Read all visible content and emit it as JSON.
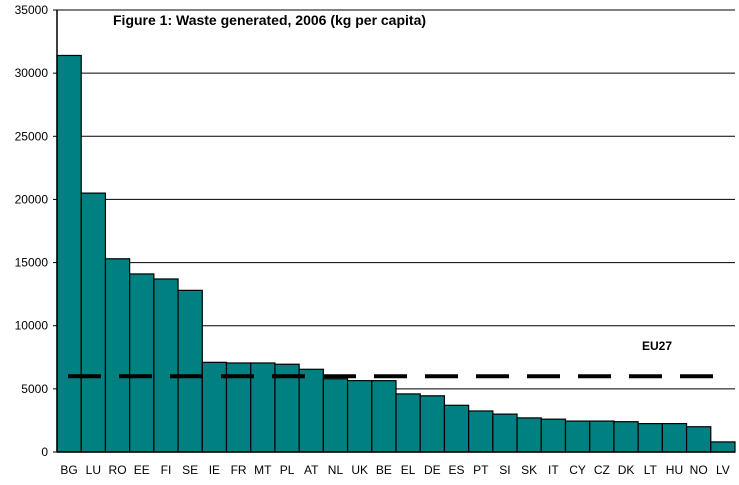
{
  "chart_data": {
    "type": "bar",
    "title": "Figure 1: Waste generated, 2006 (kg per capita)",
    "xlabel": "",
    "ylabel": "",
    "categories": [
      "BG",
      "LU",
      "RO",
      "EE",
      "FI",
      "SE",
      "IE",
      "FR",
      "MT",
      "PL",
      "AT",
      "NL",
      "UK",
      "BE",
      "EL",
      "DE",
      "ES",
      "PT",
      "SI",
      "SK",
      "IT",
      "CY",
      "CZ",
      "DK",
      "LT",
      "HU",
      "NO",
      "LV"
    ],
    "values": [
      31400,
      20500,
      15300,
      14100,
      13700,
      12800,
      7100,
      7050,
      7050,
      6950,
      6550,
      5800,
      5650,
      5650,
      4600,
      4450,
      3700,
      3250,
      3000,
      2700,
      2600,
      2450,
      2450,
      2400,
      2250,
      2250,
      2000,
      800
    ],
    "ylim": [
      0,
      35000
    ],
    "yticks": [
      0,
      5000,
      10000,
      15000,
      20000,
      25000,
      30000,
      35000
    ],
    "grid": true,
    "bar_color": "#008080",
    "reference_line": {
      "label": "EU27",
      "value": 6000,
      "style": "dashed",
      "color": "#000000"
    }
  }
}
